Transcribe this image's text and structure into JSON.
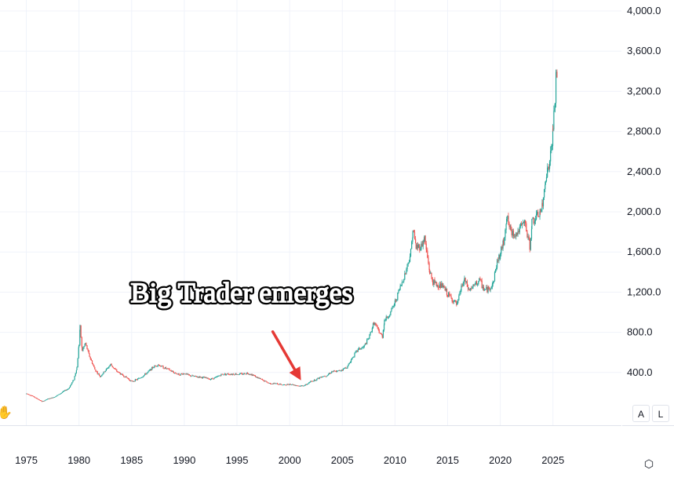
{
  "chart_data": {
    "type": "candlestick",
    "title": "",
    "xlabel": "",
    "ylabel": "",
    "x_ticks": [
      "1975",
      "1980",
      "1985",
      "1990",
      "1995",
      "2000",
      "2005",
      "2010",
      "2015",
      "2020",
      "2025"
    ],
    "y_ticks": [
      "400.0",
      "800.0",
      "1,200.0",
      "1,600.0",
      "2,000.0",
      "2,400.0",
      "2,800.0",
      "3,200.0",
      "3,600.0",
      "4,000.0"
    ],
    "ylim": [
      0,
      4000
    ],
    "xlim": [
      1972.5,
      2031.5
    ],
    "grid": true,
    "up_color": "#26a69a",
    "down_color": "#ef5350",
    "series": [
      {
        "values": [
          [
            1975.0,
            190
          ],
          [
            1975.5,
            170
          ],
          [
            1976.0,
            140
          ],
          [
            1976.5,
            110
          ],
          [
            1977.0,
            135
          ],
          [
            1977.5,
            150
          ],
          [
            1978.0,
            175
          ],
          [
            1978.5,
            210
          ],
          [
            1979.0,
            240
          ],
          [
            1979.5,
            330
          ],
          [
            1979.8,
            450
          ],
          [
            1980.0,
            680
          ],
          [
            1980.1,
            850
          ],
          [
            1980.3,
            620
          ],
          [
            1980.6,
            690
          ],
          [
            1981.0,
            560
          ],
          [
            1981.5,
            430
          ],
          [
            1982.0,
            360
          ],
          [
            1982.5,
            420
          ],
          [
            1983.0,
            480
          ],
          [
            1983.5,
            420
          ],
          [
            1984.0,
            380
          ],
          [
            1984.5,
            350
          ],
          [
            1985.0,
            310
          ],
          [
            1985.5,
            330
          ],
          [
            1986.0,
            360
          ],
          [
            1986.5,
            400
          ],
          [
            1987.0,
            450
          ],
          [
            1987.5,
            480
          ],
          [
            1988.0,
            450
          ],
          [
            1988.5,
            430
          ],
          [
            1989.0,
            400
          ],
          [
            1989.5,
            380
          ],
          [
            1990.0,
            390
          ],
          [
            1990.5,
            370
          ],
          [
            1991.0,
            360
          ],
          [
            1991.5,
            355
          ],
          [
            1992.0,
            345
          ],
          [
            1992.5,
            335
          ],
          [
            1993.0,
            350
          ],
          [
            1993.5,
            380
          ],
          [
            1994.0,
            385
          ],
          [
            1994.5,
            385
          ],
          [
            1995.0,
            385
          ],
          [
            1995.5,
            385
          ],
          [
            1996.0,
            395
          ],
          [
            1996.5,
            375
          ],
          [
            1997.0,
            345
          ],
          [
            1997.5,
            320
          ],
          [
            1998.0,
            295
          ],
          [
            1998.5,
            290
          ],
          [
            1999.0,
            285
          ],
          [
            1999.5,
            275
          ],
          [
            2000.0,
            285
          ],
          [
            2000.5,
            275
          ],
          [
            2001.0,
            265
          ],
          [
            2001.5,
            275
          ],
          [
            2002.0,
            310
          ],
          [
            2002.5,
            330
          ],
          [
            2003.0,
            360
          ],
          [
            2003.5,
            370
          ],
          [
            2004.0,
            410
          ],
          [
            2004.5,
            410
          ],
          [
            2005.0,
            430
          ],
          [
            2005.5,
            460
          ],
          [
            2006.0,
            560
          ],
          [
            2006.5,
            630
          ],
          [
            2007.0,
            650
          ],
          [
            2007.5,
            740
          ],
          [
            2008.0,
            900
          ],
          [
            2008.5,
            800
          ],
          [
            2008.8,
            760
          ],
          [
            2009.0,
            920
          ],
          [
            2009.5,
            980
          ],
          [
            2010.0,
            1100
          ],
          [
            2010.5,
            1250
          ],
          [
            2011.0,
            1400
          ],
          [
            2011.5,
            1600
          ],
          [
            2011.7,
            1820
          ],
          [
            2012.0,
            1650
          ],
          [
            2012.5,
            1660
          ],
          [
            2012.8,
            1740
          ],
          [
            2013.0,
            1600
          ],
          [
            2013.3,
            1400
          ],
          [
            2013.6,
            1300
          ],
          [
            2014.0,
            1270
          ],
          [
            2014.5,
            1260
          ],
          [
            2015.0,
            1180
          ],
          [
            2015.5,
            1120
          ],
          [
            2015.9,
            1070
          ],
          [
            2016.3,
            1250
          ],
          [
            2016.6,
            1320
          ],
          [
            2017.0,
            1220
          ],
          [
            2017.5,
            1260
          ],
          [
            2018.0,
            1320
          ],
          [
            2018.5,
            1220
          ],
          [
            2018.9,
            1230
          ],
          [
            2019.3,
            1290
          ],
          [
            2019.7,
            1500
          ],
          [
            2020.0,
            1580
          ],
          [
            2020.3,
            1700
          ],
          [
            2020.6,
            1950
          ],
          [
            2021.0,
            1800
          ],
          [
            2021.5,
            1780
          ],
          [
            2022.0,
            1850
          ],
          [
            2022.3,
            1900
          ],
          [
            2022.8,
            1650
          ],
          [
            2023.0,
            1900
          ],
          [
            2023.5,
            1950
          ],
          [
            2023.8,
            2000
          ],
          [
            2024.0,
            2050
          ],
          [
            2024.3,
            2350
          ],
          [
            2024.6,
            2450
          ],
          [
            2024.9,
            2650
          ],
          [
            2025.0,
            2850
          ],
          [
            2025.2,
            3100
          ],
          [
            2025.3,
            3350
          ],
          [
            2025.4,
            3300
          ]
        ]
      }
    ],
    "annotation": {
      "text": "Big Trader emerges",
      "arrow_target": [
        2001.3,
        275
      ]
    }
  },
  "price_scale_buttons": {
    "auto": "A",
    "log": "L"
  }
}
